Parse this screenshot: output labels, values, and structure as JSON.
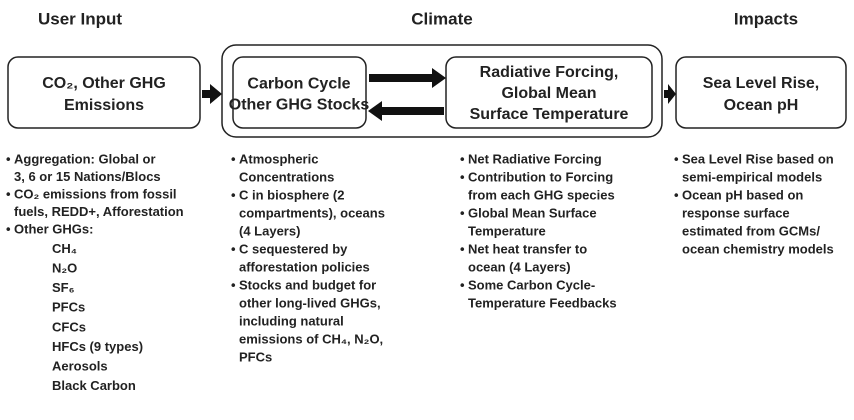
{
  "user_input": {
    "header": "User Input",
    "box": [
      "CO₂, Other GHG",
      "Emissions"
    ],
    "bullets": [
      [
        "Aggregation: Global or",
        "3, 6 or 15 Nations/Blocs"
      ],
      [
        "CO₂ emissions from fossil",
        "fuels, REDD+, Afforestation"
      ],
      [
        "Other GHGs:"
      ]
    ],
    "other_ghgs": [
      "CH₄",
      "N₂O",
      "SF₆",
      "PFCs",
      "CFCs",
      "HFCs (9 types)",
      "Aerosols",
      "Black Carbon"
    ]
  },
  "climate": {
    "header": "Climate",
    "carbon_box": [
      "Carbon Cycle",
      "Other GHG Stocks"
    ],
    "forcing_box": [
      "Radiative Forcing,",
      "Global Mean",
      "Surface Temperature"
    ],
    "carbon_bullets": [
      [
        "Atmospheric",
        "Concentrations"
      ],
      [
        "C in biosphere (2",
        "compartments), oceans",
        "(4 Layers)"
      ],
      [
        "C sequestered by",
        "afforestation policies"
      ],
      [
        "Stocks and budget for",
        "other long-lived GHGs,",
        "including natural",
        "emissions of CH₄, N₂O,",
        "PFCs"
      ]
    ],
    "forcing_bullets": [
      [
        "Net Radiative Forcing"
      ],
      [
        "Contribution to Forcing",
        "from each GHG species"
      ],
      [
        "Global Mean Surface",
        "Temperature"
      ],
      [
        "Net heat transfer to",
        "ocean (4 Layers)"
      ],
      [
        "Some Carbon Cycle-",
        "Temperature Feedbacks"
      ]
    ]
  },
  "impacts": {
    "header": "Impacts",
    "box": [
      "Sea Level Rise,",
      "Ocean pH"
    ],
    "bullets": [
      [
        "Sea Level Rise based on",
        "semi-empirical models"
      ],
      [
        "Ocean pH based on",
        "response surface",
        "estimated from GCMs/",
        "ocean chemistry models"
      ]
    ]
  }
}
